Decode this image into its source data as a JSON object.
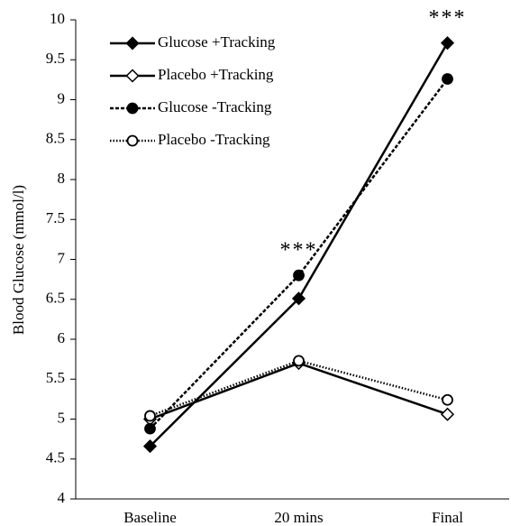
{
  "chart_data": {
    "type": "line",
    "y_label": "Blood Glucose (mmol/l)",
    "categories": [
      "Baseline",
      "20 mins",
      "Final"
    ],
    "series": [
      {
        "name": "Glucose +Tracking",
        "color": "#000000",
        "marker": "diamond",
        "marker_fill": "filled",
        "line_style": "solid",
        "values": [
          4.66,
          6.51,
          9.71
        ]
      },
      {
        "name": "Placebo +Tracking",
        "color": "#000000",
        "marker": "diamond",
        "marker_fill": "open",
        "line_style": "solid",
        "values": [
          5.0,
          5.7,
          5.06
        ]
      },
      {
        "name": "Glucose -Tracking",
        "color": "#000000",
        "marker": "circle",
        "marker_fill": "filled",
        "line_style": "dashed",
        "values": [
          4.88,
          6.8,
          9.26
        ]
      },
      {
        "name": "Placebo -Tracking",
        "color": "#000000",
        "marker": "circle",
        "marker_fill": "open",
        "line_style": "dotted",
        "values": [
          5.04,
          5.73,
          5.24
        ]
      }
    ],
    "annotations": [
      {
        "text": "***",
        "x": "20 mins"
      },
      {
        "text": "***",
        "x": "Final"
      }
    ],
    "ylim": [
      4,
      10
    ],
    "yticks": [
      4,
      4.5,
      5,
      5.5,
      6,
      6.5,
      7,
      7.5,
      8,
      8.5,
      9,
      9.5,
      10
    ],
    "legend": "upper left"
  }
}
